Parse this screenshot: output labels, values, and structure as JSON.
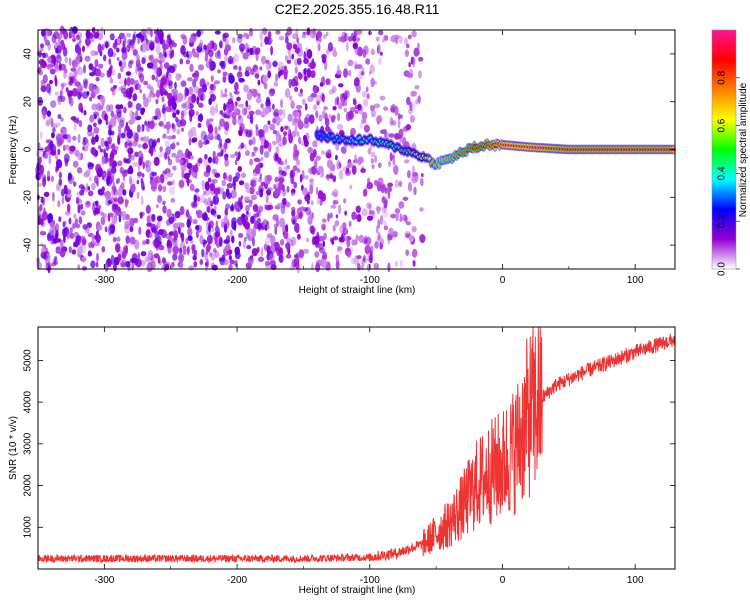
{
  "title": "C2E2.2025.355.16.48.R11",
  "chart_data": [
    {
      "type": "heatmap",
      "xlabel": "Height of straight line (km)",
      "ylabel": "Frequency (Hz)",
      "xlim": [
        -350,
        130
      ],
      "ylim": [
        -50,
        50
      ],
      "xticks": [
        -300,
        -200,
        -100,
        0,
        100
      ],
      "yticks": [
        -40,
        -20,
        0,
        20,
        40
      ],
      "grid": false,
      "colorbar": {
        "label": "Normalized spectral amplitude",
        "range": [
          0.0,
          1.0
        ],
        "ticks": [
          0.0,
          0.2,
          0.4,
          0.6,
          0.8
        ],
        "colors": [
          "#ffffff",
          "#9400d3",
          "#0000ff",
          "#00ffff",
          "#00ff00",
          "#ffff00",
          "#ff7f00",
          "#ff0000",
          "#ff1493"
        ]
      },
      "ridge": {
        "x": [
          -140,
          -120,
          -100,
          -80,
          -60,
          -50,
          -40,
          -30,
          -20,
          -10,
          0,
          20,
          50,
          100,
          130
        ],
        "frequency": [
          6,
          4,
          4,
          1,
          -3,
          -6,
          -4,
          -1,
          1,
          2,
          2,
          1,
          0,
          0,
          0
        ],
        "amplitude": [
          0.3,
          0.35,
          0.4,
          0.45,
          0.6,
          0.7,
          0.75,
          0.8,
          0.85,
          0.9,
          0.95,
          0.95,
          0.9,
          0.9,
          0.9
        ]
      }
    },
    {
      "type": "line",
      "xlabel": "Height of straight line (km)",
      "ylabel": "SNR (10 * v/v)",
      "xlim": [
        -350,
        130
      ],
      "ylim": [
        0,
        5800
      ],
      "xticks": [
        -300,
        -200,
        -100,
        0,
        100
      ],
      "yticks": [
        1000,
        2000,
        3000,
        4000,
        5000
      ],
      "grid": false,
      "series": [
        {
          "color": "#ee3333",
          "x": [
            -350,
            -300,
            -250,
            -200,
            -150,
            -100,
            -80,
            -60,
            -50,
            -40,
            -30,
            -20,
            -10,
            0,
            10,
            20,
            30,
            40,
            60,
            80,
            100,
            120,
            130
          ],
          "y": [
            250,
            250,
            250,
            250,
            250,
            280,
            380,
            600,
            850,
            1100,
            1500,
            2000,
            2300,
            2500,
            2900,
            3700,
            4100,
            4400,
            4700,
            4950,
            5200,
            5400,
            5500
          ]
        }
      ]
    }
  ]
}
